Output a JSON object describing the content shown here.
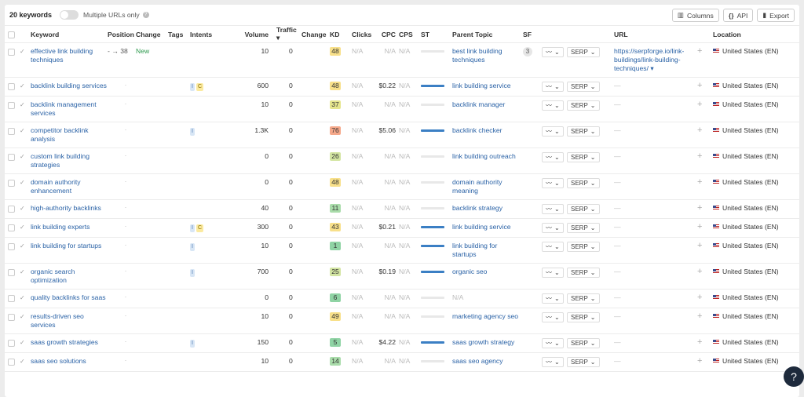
{
  "toolbar": {
    "count": "20 keywords",
    "toggle_label": "Multiple URLs only",
    "columns": "Columns",
    "api": "API",
    "export": "Export"
  },
  "headers": {
    "keyword": "Keyword",
    "position": "Position",
    "change": "Change",
    "tags": "Tags",
    "intents": "Intents",
    "volume": "Volume",
    "traffic": "Traffic ▾",
    "traffic_change": "Change",
    "kd": "KD",
    "clicks": "Clicks",
    "cpc": "CPC",
    "cps": "CPS",
    "st": "ST",
    "parent_topic": "Parent Topic",
    "sf": "SF",
    "url": "URL",
    "location": "Location"
  },
  "serp_label": "SERP",
  "colors": {
    "link": "#2a62a6",
    "st_active": "#3b7fc4",
    "st_empty": "#e8e8e8"
  },
  "rows": [
    {
      "keyword": "effective link building techniques",
      "position": "- → 38",
      "change": "New",
      "intents": [],
      "volume": "10",
      "traffic": "0",
      "kd": "48",
      "kd_color": "#f8e08a",
      "clicks": "N/A",
      "cpc": "N/A",
      "cps": "N/A",
      "st_active": false,
      "parent": "best link building techniques",
      "sf": "3",
      "url": "https://serpforge.io/link-buildings/link-building-techniques/ ▾",
      "location": "United States (EN)"
    },
    {
      "keyword": "backlink building services",
      "position": "-",
      "change": "",
      "intents": [
        "I",
        "C"
      ],
      "volume": "600",
      "traffic": "0",
      "kd": "48",
      "kd_color": "#f8e08a",
      "clicks": "N/A",
      "cpc": "$0.22",
      "cps": "N/A",
      "st_active": true,
      "parent": "link building service",
      "sf": "",
      "url": "—",
      "location": "United States (EN)"
    },
    {
      "keyword": "backlink management services",
      "position": "-",
      "change": "",
      "intents": [],
      "volume": "10",
      "traffic": "0",
      "kd": "37",
      "kd_color": "#e6e68e",
      "clicks": "N/A",
      "cpc": "N/A",
      "cps": "N/A",
      "st_active": false,
      "parent": "backlink manager",
      "sf": "",
      "url": "—",
      "location": "United States (EN)"
    },
    {
      "keyword": "competitor backlink analysis",
      "position": "-",
      "change": "",
      "intents": [
        "I"
      ],
      "volume": "1.3K",
      "traffic": "0",
      "kd": "76",
      "kd_color": "#f5a88a",
      "clicks": "N/A",
      "cpc": "$5.06",
      "cps": "N/A",
      "st_active": true,
      "parent": "backlink checker",
      "sf": "",
      "url": "—",
      "location": "United States (EN)"
    },
    {
      "keyword": "custom link building strategies",
      "position": "-",
      "change": "",
      "intents": [],
      "volume": "0",
      "traffic": "0",
      "kd": "26",
      "kd_color": "#d3e5a2",
      "clicks": "N/A",
      "cpc": "N/A",
      "cps": "N/A",
      "st_active": false,
      "parent": "link building outreach",
      "sf": "",
      "url": "—",
      "location": "United States (EN)"
    },
    {
      "keyword": "domain authority enhancement",
      "position": "-",
      "change": "",
      "intents": [],
      "volume": "0",
      "traffic": "0",
      "kd": "48",
      "kd_color": "#f8e08a",
      "clicks": "N/A",
      "cpc": "N/A",
      "cps": "N/A",
      "st_active": false,
      "parent": "domain authority meaning",
      "sf": "",
      "url": "—",
      "location": "United States (EN)"
    },
    {
      "keyword": "high-authority backlinks",
      "position": "-",
      "change": "",
      "intents": [],
      "volume": "40",
      "traffic": "0",
      "kd": "11",
      "kd_color": "#a9dcaa",
      "clicks": "N/A",
      "cpc": "N/A",
      "cps": "N/A",
      "st_active": false,
      "parent": "backlink strategy",
      "sf": "",
      "url": "—",
      "location": "United States (EN)"
    },
    {
      "keyword": "link building experts",
      "position": "-",
      "change": "",
      "intents": [
        "I",
        "C"
      ],
      "volume": "300",
      "traffic": "0",
      "kd": "43",
      "kd_color": "#f8e08a",
      "clicks": "N/A",
      "cpc": "$0.21",
      "cps": "N/A",
      "st_active": true,
      "parent": "link building service",
      "sf": "",
      "url": "—",
      "location": "United States (EN)"
    },
    {
      "keyword": "link building for startups",
      "position": "-",
      "change": "",
      "intents": [
        "I"
      ],
      "volume": "10",
      "traffic": "0",
      "kd": "1",
      "kd_color": "#8fd3a4",
      "clicks": "N/A",
      "cpc": "N/A",
      "cps": "N/A",
      "st_active": true,
      "parent": "link building for startups",
      "sf": "",
      "url": "—",
      "location": "United States (EN)"
    },
    {
      "keyword": "organic search optimization",
      "position": "-",
      "change": "",
      "intents": [
        "I"
      ],
      "volume": "700",
      "traffic": "0",
      "kd": "25",
      "kd_color": "#d3e5a2",
      "clicks": "N/A",
      "cpc": "$0.19",
      "cps": "N/A",
      "st_active": true,
      "parent": "organic seo",
      "sf": "",
      "url": "—",
      "location": "United States (EN)"
    },
    {
      "keyword": "quality backlinks for saas",
      "position": "-",
      "change": "",
      "intents": [],
      "volume": "0",
      "traffic": "0",
      "kd": "6",
      "kd_color": "#8fd3a4",
      "clicks": "N/A",
      "cpc": "N/A",
      "cps": "N/A",
      "st_active": false,
      "parent": "N/A",
      "sf": "",
      "url": "—",
      "location": "United States (EN)"
    },
    {
      "keyword": "results-driven seo services",
      "position": "-",
      "change": "",
      "intents": [],
      "volume": "10",
      "traffic": "0",
      "kd": "49",
      "kd_color": "#f8e08a",
      "clicks": "N/A",
      "cpc": "N/A",
      "cps": "N/A",
      "st_active": false,
      "parent": "marketing agency seo",
      "sf": "",
      "url": "—",
      "location": "United States (EN)"
    },
    {
      "keyword": "saas growth strategies",
      "position": "-",
      "change": "",
      "intents": [
        "I"
      ],
      "volume": "150",
      "traffic": "0",
      "kd": "5",
      "kd_color": "#8fd3a4",
      "clicks": "N/A",
      "cpc": "$4.22",
      "cps": "N/A",
      "st_active": true,
      "parent": "saas growth strategy",
      "sf": "",
      "url": "—",
      "location": "United States (EN)"
    },
    {
      "keyword": "saas seo solutions",
      "position": "-",
      "change": "",
      "intents": [],
      "volume": "10",
      "traffic": "0",
      "kd": "14",
      "kd_color": "#a9dcaa",
      "clicks": "N/A",
      "cpc": "N/A",
      "cps": "N/A",
      "st_active": false,
      "parent": "saas seo agency",
      "sf": "",
      "url": "—",
      "location": "United States (EN)"
    }
  ],
  "help": "?"
}
